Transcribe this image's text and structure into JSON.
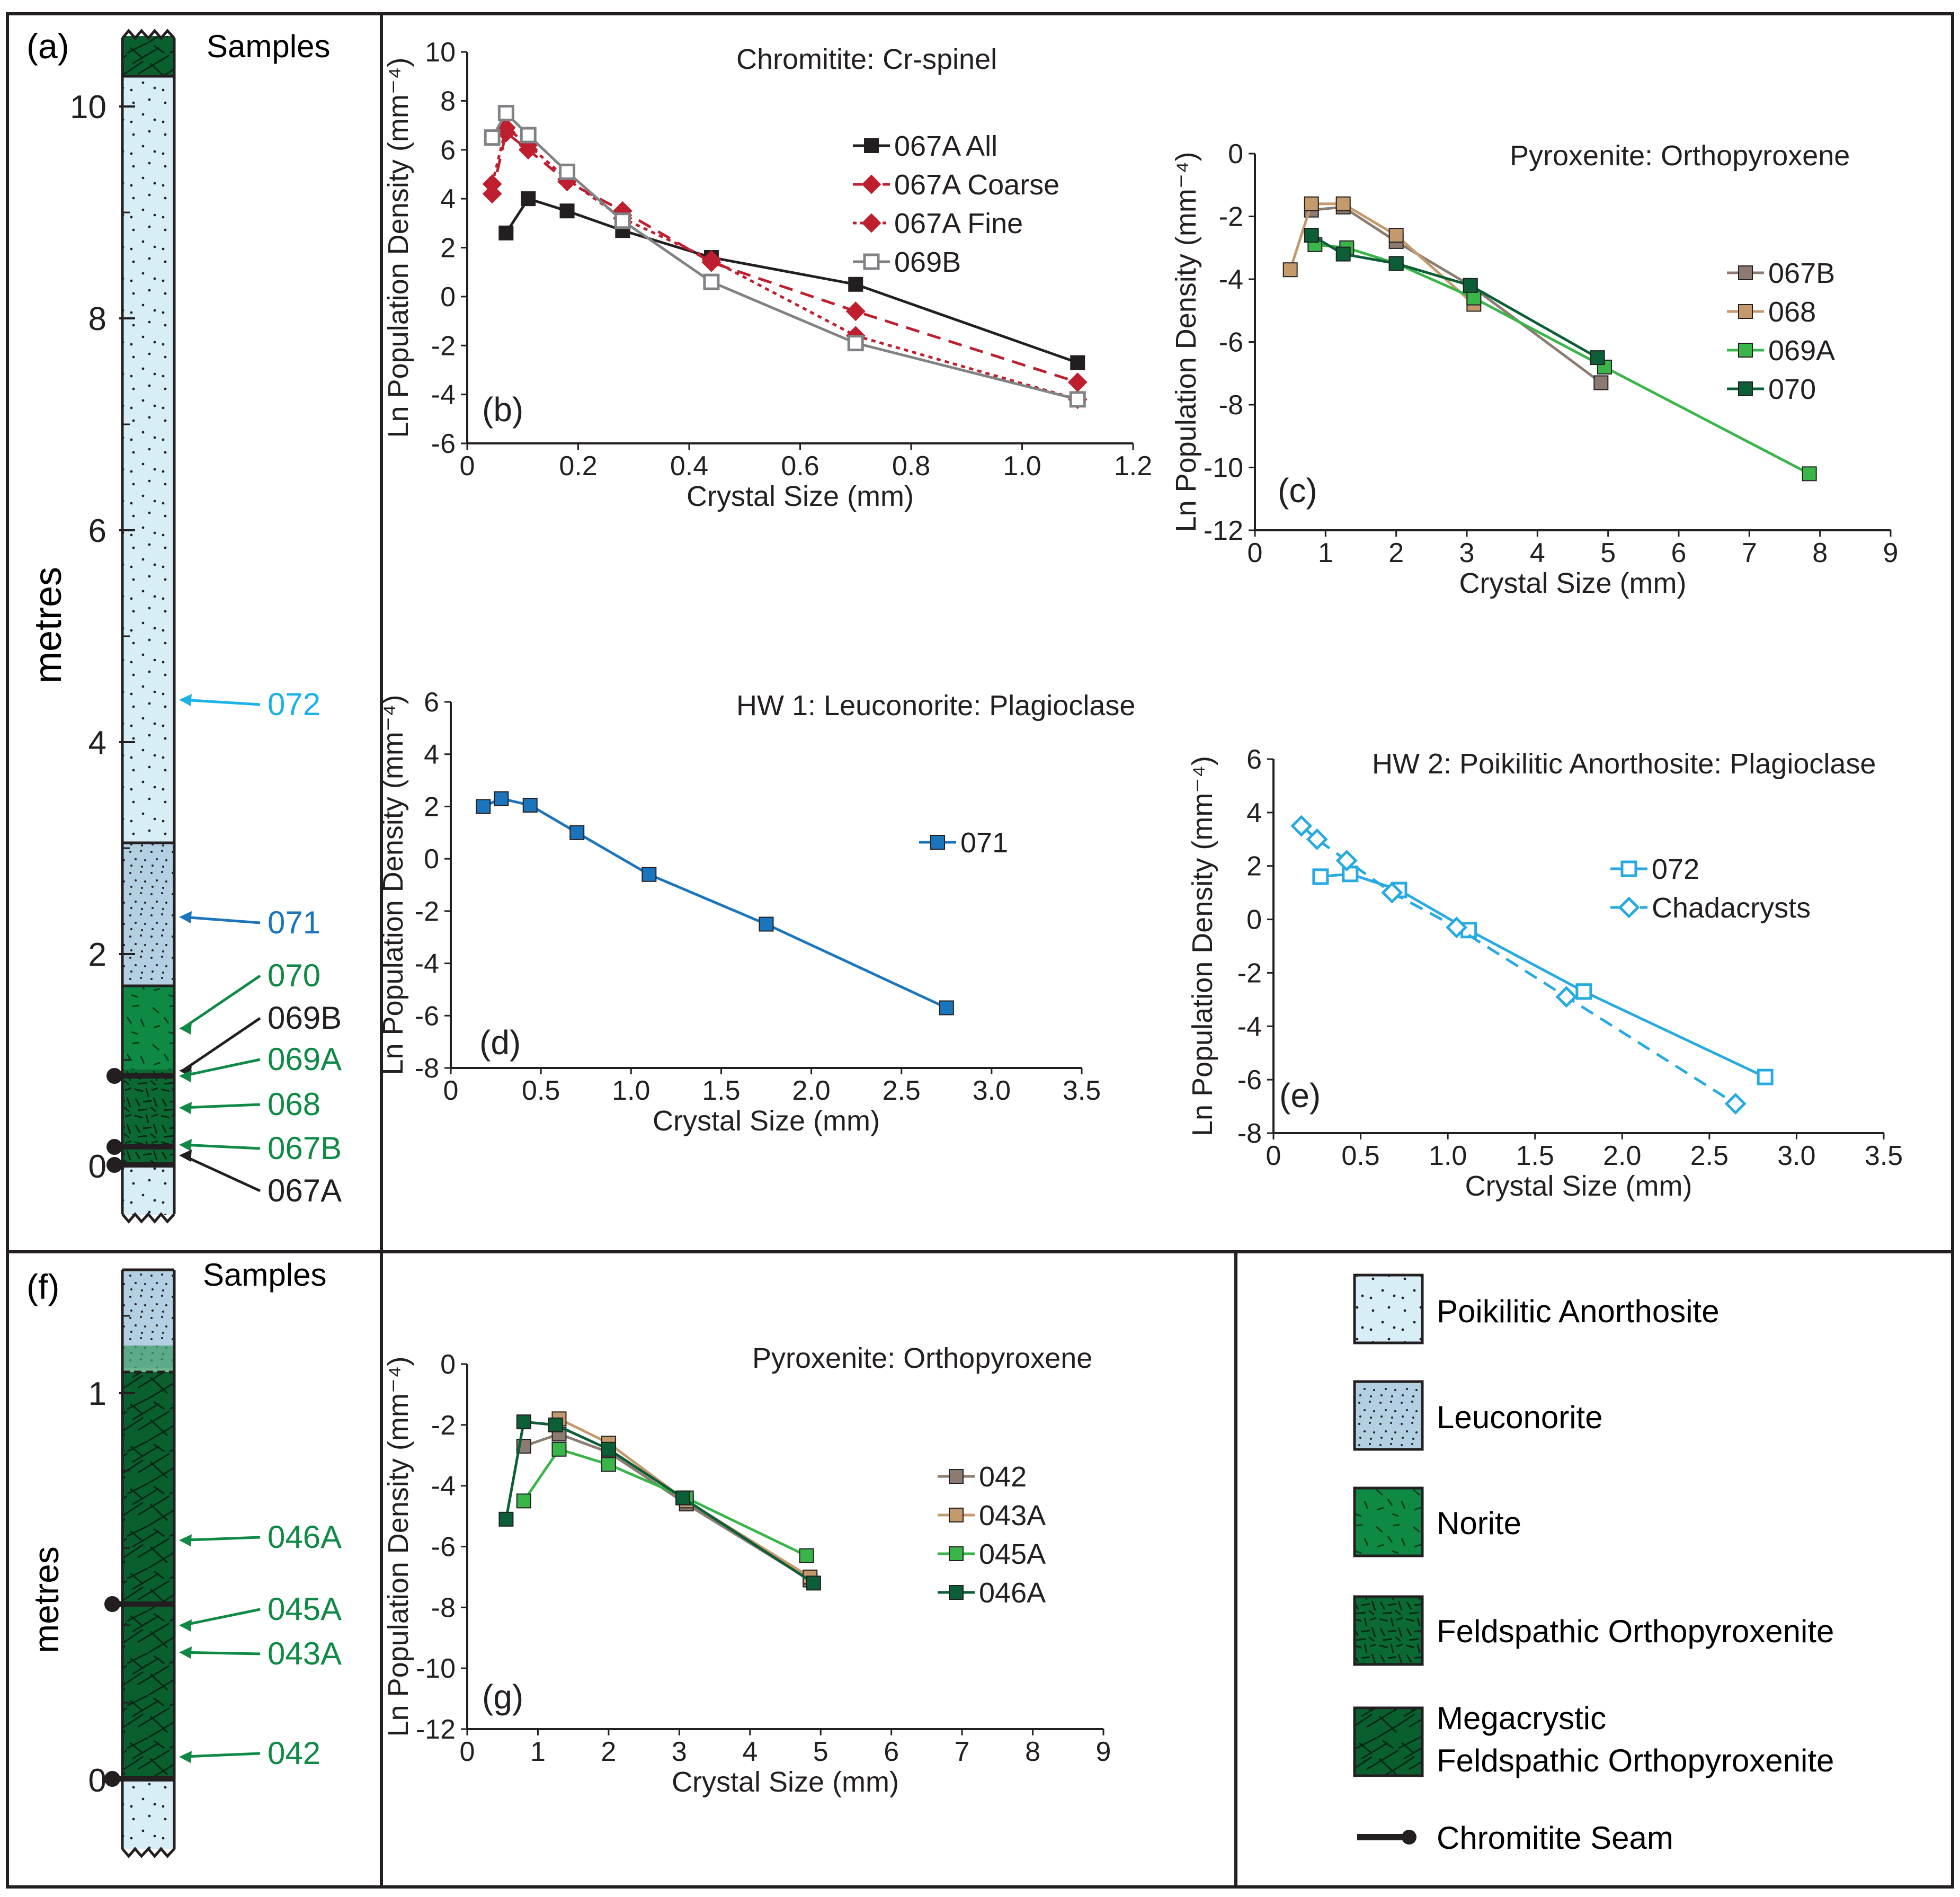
{
  "colors": {
    "frame": "#231f20",
    "poikilitic": "#d7eef6",
    "leuconorite": "#b3cfe2",
    "norite": "#0f8a45",
    "fel_opx": "#0b6a34",
    "megacrystic": "#0a5f2f",
    "seam": "#231f20",
    "blue_072": "#1cb2e8",
    "blue_071": "#1b75bc",
    "green_label": "#0f8a45",
    "black_label": "#231f20"
  },
  "column_a": {
    "label": "(a)",
    "header": "Samples",
    "axis_title": "metres",
    "ticks": [
      "0",
      "2",
      "4",
      "6",
      "8",
      "10"
    ],
    "samples": [
      {
        "id": "072",
        "height_m": 4.4,
        "color": "#1cb2e8"
      },
      {
        "id": "071",
        "height_m": 2.35,
        "color": "#1b75bc"
      },
      {
        "id": "070",
        "height_m": 1.3,
        "color": "#0f8a45"
      },
      {
        "id": "069B",
        "height_m": 0.9,
        "color": "#231f20"
      },
      {
        "id": "069A",
        "height_m": 0.85,
        "color": "#0f8a45"
      },
      {
        "id": "068",
        "height_m": 0.55,
        "color": "#0f8a45"
      },
      {
        "id": "067B",
        "height_m": 0.2,
        "color": "#0f8a45"
      },
      {
        "id": "067A",
        "height_m": 0.1,
        "color": "#231f20"
      }
    ]
  },
  "column_f": {
    "label": "(f)",
    "header": "Samples",
    "axis_title": "metres",
    "ticks": [
      "0",
      "1"
    ],
    "samples": [
      {
        "id": "046A",
        "height_m": 0.62,
        "color": "#0f8a45"
      },
      {
        "id": "045A",
        "height_m": 0.4,
        "color": "#0f8a45"
      },
      {
        "id": "043A",
        "height_m": 0.33,
        "color": "#0f8a45"
      },
      {
        "id": "042",
        "height_m": 0.06,
        "color": "#0f8a45"
      }
    ]
  },
  "legend": {
    "items": [
      "Poikilitic Anorthosite",
      "Leuconorite",
      "Norite",
      "Feldspathic Orthopyroxenite",
      "Megacrystic Feldspathic Orthopyroxenite",
      "Chromitite Seam"
    ],
    "megacrystic_lines": [
      "Megacrystic",
      "Feldspathic Orthopyroxenite"
    ]
  },
  "chart_data": [
    {
      "id": "b",
      "panel_label": "(b)",
      "type": "line",
      "title": "Chromitite: Cr-spinel",
      "xlabel": "Crystal Size (mm)",
      "ylabel": "Ln Population Density (mm⁻⁴)",
      "xlim": [
        0,
        1.2
      ],
      "ylim": [
        -6,
        10
      ],
      "xticks": [
        0,
        0.2,
        0.4,
        0.6,
        0.8,
        1.0,
        1.2
      ],
      "xtick_labels": [
        "0",
        "0.2",
        "0.4",
        "0.6",
        "0.8",
        "1.0",
        "1.2"
      ],
      "yticks": [
        -6,
        -4,
        -2,
        0,
        2,
        4,
        6,
        8,
        10
      ],
      "ytick_labels": [
        "-6",
        "-4",
        "-2",
        "0",
        "2",
        "4",
        "6",
        "8",
        "10"
      ],
      "series": [
        {
          "name": "067A All",
          "color": "#231f20",
          "marker": "square",
          "dash": "solid",
          "x": [
            0.07,
            0.11,
            0.18,
            0.28,
            0.44,
            0.7,
            1.1
          ],
          "y": [
            2.6,
            4.0,
            3.5,
            2.7,
            1.6,
            0.5,
            -2.7
          ]
        },
        {
          "name": "067A Coarse",
          "color": "#be1e2d",
          "marker": "diamond",
          "dash": "dashed",
          "x": [
            0.045,
            0.07,
            0.11,
            0.18,
            0.28,
            0.44,
            0.7,
            1.1
          ],
          "y": [
            4.2,
            6.7,
            6.0,
            4.7,
            3.5,
            1.4,
            -0.6,
            -3.5
          ]
        },
        {
          "name": "067A Fine",
          "color": "#be1e2d",
          "marker": "diamond",
          "dash": "dotted",
          "x": [
            0.045,
            0.07,
            0.11,
            0.18,
            0.28,
            0.44,
            0.7,
            1.1
          ],
          "y": [
            4.6,
            6.9,
            6.2,
            4.8,
            3.2,
            1.5,
            -1.6,
            -4.2
          ]
        },
        {
          "name": "069B",
          "color": "#808285",
          "marker": "open-square",
          "dash": "solid",
          "x": [
            0.045,
            0.07,
            0.11,
            0.18,
            0.28,
            0.44,
            0.7,
            1.1
          ],
          "y": [
            6.5,
            7.5,
            6.6,
            5.1,
            3.1,
            0.6,
            -1.9,
            -4.2
          ]
        }
      ]
    },
    {
      "id": "c",
      "panel_label": "(c)",
      "type": "line",
      "title": "Pyroxenite: Orthopyroxene",
      "xlabel": "Crystal Size (mm)",
      "ylabel": "Ln Population Density (mm⁻⁴)",
      "xlim": [
        0,
        9
      ],
      "ylim": [
        -12,
        0
      ],
      "xticks": [
        0,
        1,
        2,
        3,
        4,
        5,
        6,
        7,
        8,
        9
      ],
      "xtick_labels": [
        "0",
        "1",
        "2",
        "3",
        "4",
        "5",
        "6",
        "7",
        "8",
        "9"
      ],
      "yticks": [
        -12,
        -10,
        -8,
        -6,
        -4,
        -2,
        0
      ],
      "ytick_labels": [
        "-12",
        "-10",
        "-8",
        "-6",
        "-4",
        "-2",
        "0"
      ],
      "series": [
        {
          "name": "067B",
          "color": "#8c7b70",
          "marker": "square",
          "dash": "solid",
          "x": [
            0.8,
            1.25,
            2.0,
            3.05,
            4.9
          ],
          "y": [
            -1.8,
            -1.7,
            -2.8,
            -4.2,
            -7.3
          ]
        },
        {
          "name": "068",
          "color": "#c49a6c",
          "marker": "square",
          "dash": "solid",
          "x": [
            0.5,
            0.8,
            1.25,
            2.0,
            3.1
          ],
          "y": [
            -3.7,
            -1.6,
            -1.6,
            -2.6,
            -4.8
          ]
        },
        {
          "name": "069A",
          "color": "#3ab54a",
          "marker": "square",
          "dash": "solid",
          "x": [
            0.85,
            1.3,
            2.0,
            3.1,
            4.95,
            7.85
          ],
          "y": [
            -2.9,
            -3.0,
            -3.5,
            -4.6,
            -6.8,
            -10.2
          ]
        },
        {
          "name": "070",
          "color": "#0b5e36",
          "marker": "square",
          "dash": "solid",
          "x": [
            0.8,
            1.25,
            2.0,
            3.05,
            4.85
          ],
          "y": [
            -2.6,
            -3.2,
            -3.5,
            -4.2,
            -6.5
          ]
        }
      ]
    },
    {
      "id": "d",
      "panel_label": "(d)",
      "type": "line",
      "title": "HW 1: Leuconorite: Plagioclase",
      "xlabel": "Crystal Size (mm)",
      "ylabel": "Ln Population Density (mm⁻⁴)",
      "xlim": [
        0,
        3.5
      ],
      "ylim": [
        -8,
        6
      ],
      "xticks": [
        0,
        0.5,
        1.0,
        1.5,
        2.0,
        2.5,
        3.0,
        3.5
      ],
      "xtick_labels": [
        "0",
        "0.5",
        "1.0",
        "1.5",
        "2.0",
        "2.5",
        "3.0",
        "3.5"
      ],
      "yticks": [
        -8,
        -6,
        -4,
        -2,
        0,
        2,
        4,
        6
      ],
      "ytick_labels": [
        "-8",
        "-6",
        "-4",
        "-2",
        "0",
        "2",
        "4",
        "6"
      ],
      "series": [
        {
          "name": "071",
          "color": "#1b75bc",
          "marker": "square",
          "dash": "solid",
          "x": [
            0.18,
            0.28,
            0.44,
            0.7,
            1.1,
            1.75,
            2.75
          ],
          "y": [
            2.0,
            2.3,
            2.05,
            1.0,
            -0.6,
            -2.5,
            -5.7
          ]
        }
      ]
    },
    {
      "id": "e",
      "panel_label": "(e)",
      "type": "line",
      "title": "HW 2: Poikilitic Anorthosite: Plagioclase",
      "xlabel": "Crystal Size (mm)",
      "ylabel": "Ln Population Density (mm⁻⁴)",
      "xlim": [
        0,
        3.5
      ],
      "ylim": [
        -8,
        6
      ],
      "xticks": [
        0,
        0.5,
        1.0,
        1.5,
        2.0,
        2.5,
        3.0,
        3.5
      ],
      "xtick_labels": [
        "0",
        "0.5",
        "1.0",
        "1.5",
        "2.0",
        "2.5",
        "3.0",
        "3.5"
      ],
      "yticks": [
        -8,
        -6,
        -4,
        -2,
        0,
        2,
        4,
        6
      ],
      "ytick_labels": [
        "-8",
        "-6",
        "-4",
        "-2",
        "0",
        "2",
        "4",
        "6"
      ],
      "series": [
        {
          "name": "072",
          "color": "#27aae1",
          "marker": "open-square",
          "dash": "solid",
          "x": [
            0.27,
            0.44,
            0.72,
            1.12,
            1.78,
            2.82
          ],
          "y": [
            1.6,
            1.7,
            1.1,
            -0.4,
            -2.7,
            -5.9
          ]
        },
        {
          "name": "Chadacrysts",
          "color": "#27aae1",
          "marker": "open-diamond",
          "dash": "dashed",
          "x": [
            0.16,
            0.25,
            0.42,
            0.68,
            1.05,
            1.68,
            2.65
          ],
          "y": [
            3.5,
            3.0,
            2.2,
            1.0,
            -0.3,
            -2.9,
            -6.9
          ]
        }
      ]
    },
    {
      "id": "g",
      "panel_label": "(g)",
      "type": "line",
      "title": "Pyroxenite: Orthopyroxene",
      "xlabel": "Crystal Size (mm)",
      "ylabel": "Ln Population Density (mm⁻⁴)",
      "xlim": [
        0,
        9
      ],
      "ylim": [
        -12,
        0
      ],
      "xticks": [
        0,
        1,
        2,
        3,
        4,
        5,
        6,
        7,
        8,
        9
      ],
      "xtick_labels": [
        "0",
        "1",
        "2",
        "3",
        "4",
        "5",
        "6",
        "7",
        "8",
        "9"
      ],
      "yticks": [
        -12,
        -10,
        -8,
        -6,
        -4,
        -2,
        0
      ],
      "ytick_labels": [
        "-12",
        "-10",
        "-8",
        "-6",
        "-4",
        "-2",
        "0"
      ],
      "series": [
        {
          "name": "042",
          "color": "#8c7b70",
          "marker": "square",
          "dash": "solid",
          "x": [
            0.8,
            1.3,
            2.0,
            3.1,
            4.85
          ],
          "y": [
            -2.7,
            -2.3,
            -2.9,
            -4.6,
            -7.1
          ]
        },
        {
          "name": "043A",
          "color": "#c49a6c",
          "marker": "square",
          "dash": "solid",
          "x": [
            1.3,
            2.0,
            3.1,
            4.85
          ],
          "y": [
            -1.8,
            -2.6,
            -4.5,
            -7.0
          ]
        },
        {
          "name": "045A",
          "color": "#3ab54a",
          "marker": "square",
          "dash": "solid",
          "x": [
            0.8,
            1.3,
            2.0,
            3.1,
            4.8
          ],
          "y": [
            -4.5,
            -2.8,
            -3.3,
            -4.4,
            -6.3
          ]
        },
        {
          "name": "046A",
          "color": "#0b5e36",
          "marker": "square",
          "dash": "solid",
          "x": [
            0.55,
            0.8,
            1.25,
            2.0,
            3.05,
            4.9
          ],
          "y": [
            -5.1,
            -1.9,
            -2.0,
            -2.8,
            -4.4,
            -7.2
          ]
        }
      ]
    }
  ]
}
